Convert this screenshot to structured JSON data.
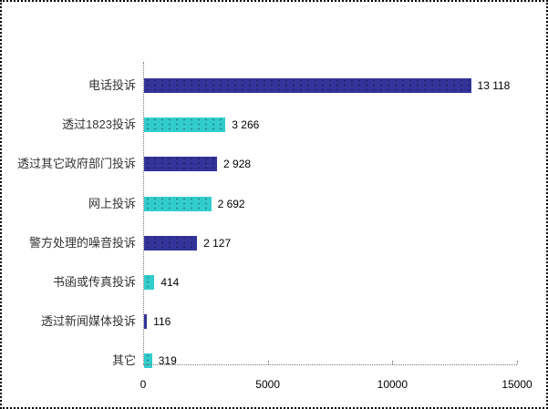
{
  "chart_data": {
    "type": "bar",
    "orientation": "horizontal",
    "title": "",
    "xlabel": "",
    "ylabel": "",
    "xlim": [
      0,
      15000
    ],
    "x_ticks": [
      0,
      5000,
      10000,
      15000
    ],
    "x_tick_labels": [
      "0",
      "5000",
      "10000",
      "15000"
    ],
    "grid": false,
    "legend": null,
    "categories": [
      "电话投诉",
      "透过1823投诉",
      "透过其它政府部门投诉",
      "网上投诉",
      "警方处理的噪音投诉",
      "书函或传真投诉",
      "透过新闻媒体投诉",
      "其它"
    ],
    "values": [
      13118,
      3266,
      2928,
      2692,
      2127,
      414,
      116,
      319
    ],
    "value_labels": [
      "13 118",
      "3 266",
      "2 928",
      "2 692",
      "2 127",
      "414",
      "116",
      "319"
    ],
    "bar_colors": [
      "#333399",
      "#33cccc",
      "#333399",
      "#33cccc",
      "#333399",
      "#33cccc",
      "#333399",
      "#33cccc"
    ]
  },
  "colors": {
    "dark_bar": "#333399",
    "light_bar": "#33cccc"
  }
}
